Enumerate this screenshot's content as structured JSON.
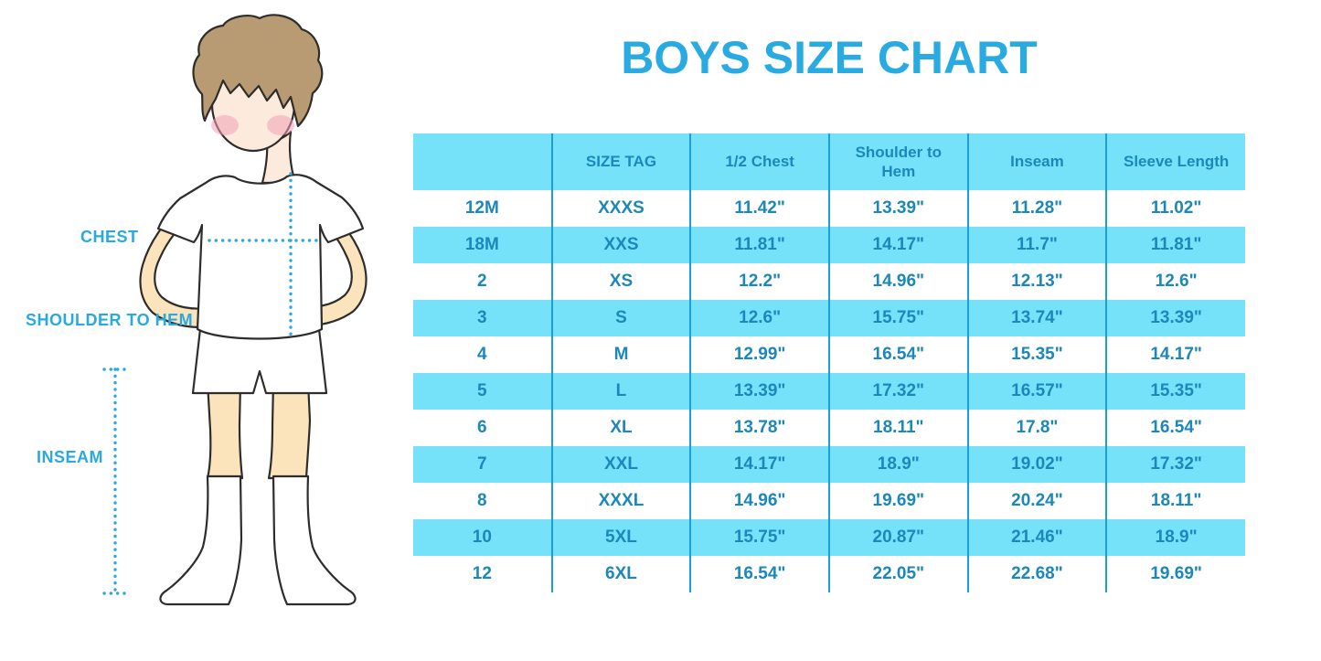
{
  "title": "BOYS SIZE CHART",
  "figure": {
    "description": "outlined illustration of a boy in white t-shirt, shorts and knee socks with dotted measurement guides",
    "labels": {
      "chest": "CHEST",
      "shoulder_to_hem": "SHOULDER TO HEM",
      "inseam": "INSEAM"
    }
  },
  "colors": {
    "title_blue": "#29ABE2",
    "label_blue": "#29A9E1",
    "dotted_line_blue": "#2FA8DF",
    "row_cyan": "#76E2FA",
    "grid_line": "#1C9FD1",
    "cell_text": "#1B87BB",
    "skin": "#FBE3BC",
    "face_skin": "#FCEBDC",
    "cheek_pink": "#F19FB6",
    "hair_brown": "#B89B72",
    "outline": "#2E2D2B"
  },
  "chart_data": {
    "type": "table",
    "title": "BOYS SIZE CHART",
    "columns": [
      "",
      "SIZE TAG",
      "1/2 Chest",
      "Shoulder to Hem",
      "Inseam",
      "Sleeve Length"
    ],
    "rows": [
      [
        "12M",
        "XXXS",
        "11.42\"",
        "13.39\"",
        "11.28\"",
        "11.02\""
      ],
      [
        "18M",
        "XXS",
        "11.81\"",
        "14.17\"",
        "11.7\"",
        "11.81\""
      ],
      [
        "2",
        "XS",
        "12.2\"",
        "14.96\"",
        "12.13\"",
        "12.6\""
      ],
      [
        "3",
        "S",
        "12.6\"",
        "15.75\"",
        "13.74\"",
        "13.39\""
      ],
      [
        "4",
        "M",
        "12.99\"",
        "16.54\"",
        "15.35\"",
        "14.17\""
      ],
      [
        "5",
        "L",
        "13.39\"",
        "17.32\"",
        "16.57\"",
        "15.35\""
      ],
      [
        "6",
        "XL",
        "13.78\"",
        "18.11\"",
        "17.8\"",
        "16.54\""
      ],
      [
        "7",
        "XXL",
        "14.17\"",
        "18.9\"",
        "19.02\"",
        "17.32\""
      ],
      [
        "8",
        "XXXL",
        "14.96\"",
        "19.69\"",
        "20.24\"",
        "18.11\""
      ],
      [
        "10",
        "5XL",
        "15.75\"",
        "20.87\"",
        "21.46\"",
        "18.9\""
      ],
      [
        "12",
        "6XL",
        "16.54\"",
        "22.05\"",
        "22.68\"",
        "19.69\""
      ]
    ],
    "row_striping": "alternating white and cyan starting with white",
    "grid": "vertical column separators only, no outer border",
    "legend_position": "none"
  }
}
